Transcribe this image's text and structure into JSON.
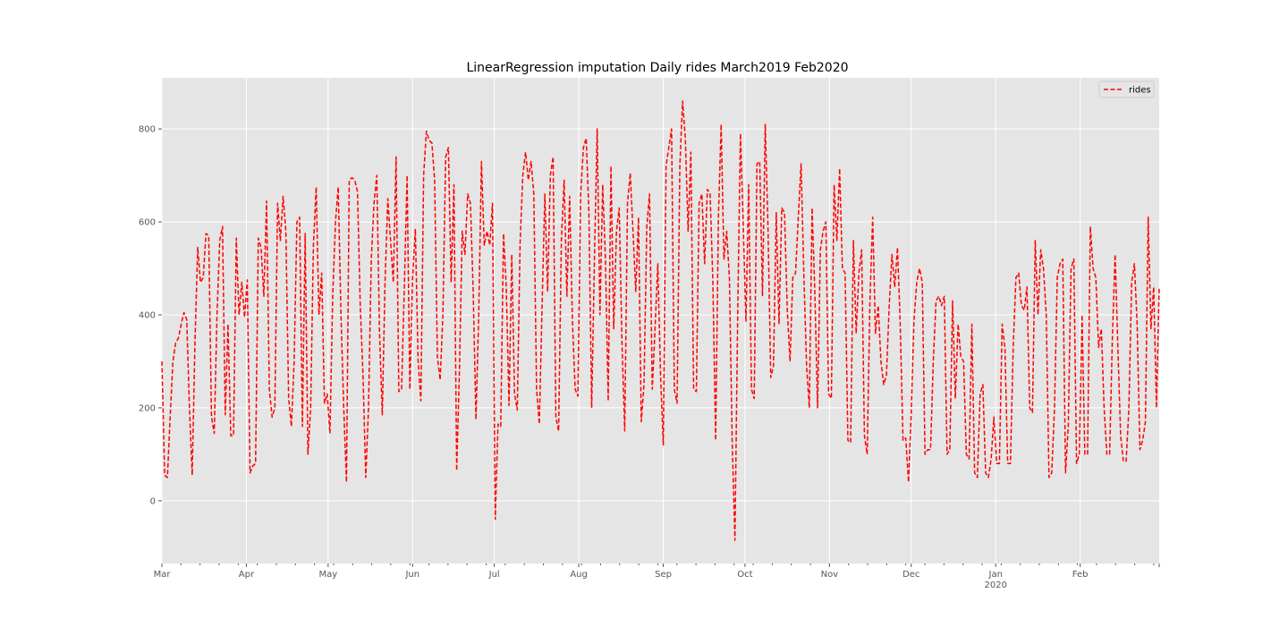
{
  "chart_data": {
    "type": "line",
    "title": "LinearRegression imputation Daily rides March2019 Feb2020",
    "xlabel": "",
    "ylabel": "",
    "x_range": [
      "2019-03-01",
      "2020-02-29"
    ],
    "ylim": [
      -135,
      910
    ],
    "yticks": [
      0,
      200,
      400,
      600,
      800
    ],
    "xticks": [
      {
        "date": "2019-03-01",
        "label": "Mar"
      },
      {
        "date": "2019-04-01",
        "label": "Apr"
      },
      {
        "date": "2019-05-01",
        "label": "May"
      },
      {
        "date": "2019-06-01",
        "label": "Jun"
      },
      {
        "date": "2019-07-01",
        "label": "Jul"
      },
      {
        "date": "2019-08-01",
        "label": "Aug"
      },
      {
        "date": "2019-09-01",
        "label": "Sep"
      },
      {
        "date": "2019-10-01",
        "label": "Oct"
      },
      {
        "date": "2019-11-01",
        "label": "Nov"
      },
      {
        "date": "2019-12-01",
        "label": "Dec"
      },
      {
        "date": "2020-01-01",
        "label": "Jan",
        "sublabel": "2020"
      },
      {
        "date": "2020-02-01",
        "label": "Feb"
      }
    ],
    "grid": true,
    "legend": {
      "location": "top-right",
      "entries": [
        "rides"
      ]
    },
    "colors": {
      "line": "#ff0000",
      "background": "#e5e5e5",
      "grid": "#ffffff"
    },
    "series": [
      {
        "name": "rides",
        "style": "dashed",
        "values": [
          300,
          55,
          50,
          180,
          300,
          340,
          350,
          380,
          405,
          390,
          200,
          55,
          340,
          545,
          470,
          480,
          575,
          570,
          180,
          145,
          400,
          560,
          590,
          185,
          380,
          140,
          140,
          565,
          400,
          470,
          395,
          475,
          60,
          75,
          80,
          565,
          545,
          440,
          645,
          240,
          180,
          200,
          640,
          560,
          655,
          580,
          220,
          160,
          300,
          600,
          610,
          160,
          575,
          100,
          200,
          550,
          675,
          400,
          490,
          210,
          230,
          145,
          440,
          600,
          675,
          400,
          200,
          40,
          690,
          695,
          690,
          665,
          420,
          270,
          50,
          200,
          520,
          640,
          700,
          360,
          185,
          470,
          650,
          560,
          470,
          740,
          235,
          240,
          460,
          700,
          240,
          480,
          585,
          300,
          215,
          700,
          795,
          775,
          770,
          690,
          310,
          260,
          400,
          740,
          760,
          470,
          680,
          65,
          280,
          580,
          530,
          660,
          640,
          450,
          175,
          400,
          730,
          550,
          580,
          550,
          640,
          -40,
          165,
          160,
          575,
          460,
          205,
          530,
          230,
          195,
          550,
          700,
          750,
          690,
          730,
          660,
          240,
          165,
          420,
          660,
          450,
          700,
          740,
          180,
          150,
          560,
          690,
          440,
          655,
          390,
          240,
          225,
          660,
          760,
          780,
          620,
          200,
          520,
          800,
          400,
          680,
          520,
          215,
          720,
          370,
          580,
          630,
          340,
          150,
          640,
          705,
          580,
          450,
          610,
          170,
          250,
          590,
          660,
          240,
          370,
          510,
          270,
          120,
          720,
          760,
          800,
          240,
          210,
          720,
          860,
          780,
          580,
          750,
          240,
          235,
          640,
          660,
          510,
          670,
          660,
          470,
          130,
          610,
          810,
          520,
          580,
          480,
          130,
          -85,
          400,
          790,
          600,
          385,
          680,
          240,
          220,
          725,
          730,
          440,
          810,
          590,
          265,
          290,
          620,
          380,
          630,
          620,
          410,
          300,
          480,
          490,
          610,
          725,
          490,
          290,
          200,
          630,
          450,
          200,
          540,
          580,
          600,
          230,
          220,
          680,
          560,
          715,
          500,
          490,
          130,
          125,
          560,
          360,
          490,
          540,
          140,
          100,
          430,
          610,
          360,
          420,
          300,
          250,
          270,
          420,
          530,
          460,
          545,
          380,
          130,
          135,
          40,
          190,
          390,
          470,
          500,
          470,
          100,
          110,
          110,
          300,
          430,
          440,
          420,
          440,
          100,
          110,
          430,
          220,
          380,
          310,
          300,
          100,
          90,
          380,
          60,
          50,
          230,
          250,
          60,
          50,
          90,
          180,
          80,
          80,
          380,
          330,
          80,
          80,
          330,
          480,
          490,
          420,
          410,
          460,
          200,
          190,
          560,
          400,
          540,
          500,
          400,
          50,
          60,
          200,
          480,
          510,
          520,
          60,
          160,
          500,
          520,
          80,
          100,
          400,
          100,
          100,
          590,
          500,
          480,
          330,
          370,
          200,
          100,
          100,
          350,
          530,
          330,
          140,
          85,
          85,
          200,
          470,
          510,
          380,
          110,
          130,
          170,
          610,
          370,
          460,
          200,
          460
        ]
      }
    ]
  }
}
